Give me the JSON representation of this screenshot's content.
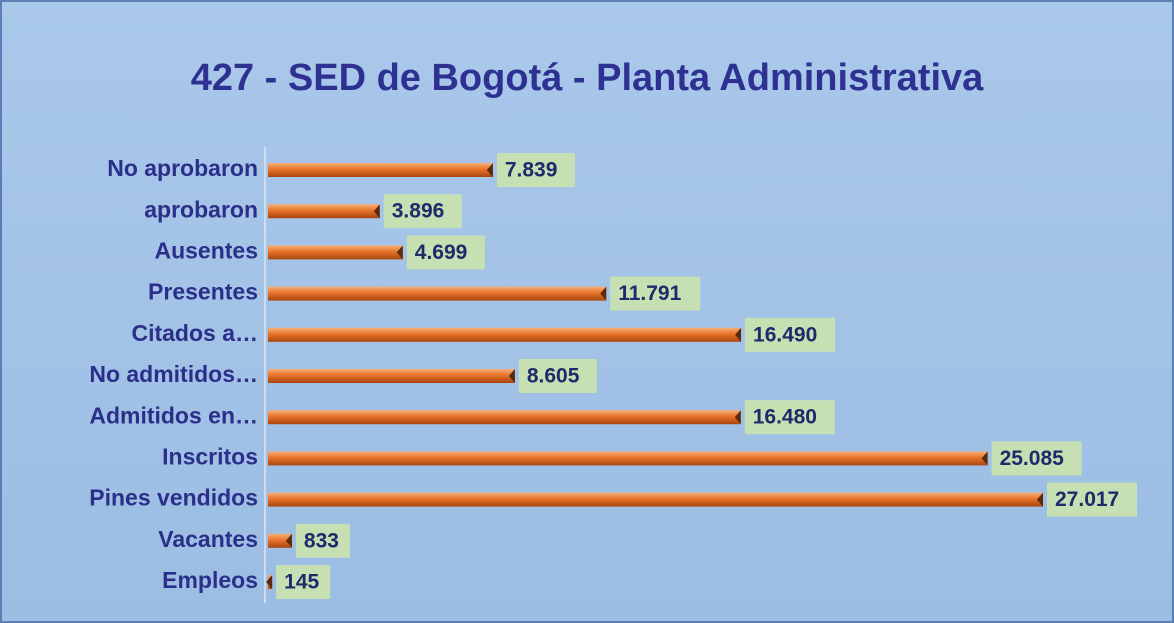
{
  "chart_data": {
    "type": "hbar",
    "title": "427 - SED de Bogotá - Planta Administrativa",
    "categories": [
      "No aprobaron",
      "aprobaron",
      "Ausentes",
      "Presentes",
      "Citados a…",
      "No admitidos…",
      "Admitidos en…",
      "Inscritos",
      "Pines vendidos",
      "Vacantes",
      "Empleos"
    ],
    "values": [
      7839,
      3896,
      4699,
      11791,
      16490,
      8605,
      16480,
      25085,
      27017,
      833,
      145
    ],
    "value_labels": [
      "7.839",
      "3.896",
      "4.699",
      "11.791",
      "16.490",
      "8.605",
      "16.480",
      "25.085",
      "27.017",
      "833",
      "145"
    ],
    "color": "#e8732a"
  }
}
